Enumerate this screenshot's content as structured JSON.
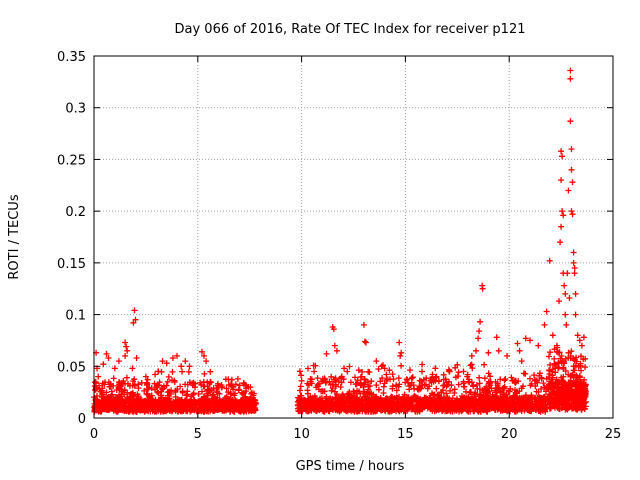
{
  "chart_data": {
    "type": "scatter",
    "title": "Day 066 of 2016, Rate Of TEC Index for receiver p121",
    "xlabel": "GPS time / hours",
    "ylabel": "ROTI / TECUs",
    "xlim": [
      0,
      25
    ],
    "ylim": [
      0,
      0.35
    ],
    "x_ticks": [
      0,
      5,
      10,
      15,
      20,
      25
    ],
    "x_tick_labels": [
      "0",
      "5",
      "10",
      "15",
      "20",
      "25"
    ],
    "y_ticks": [
      0,
      0.05,
      0.1,
      0.15,
      0.2,
      0.25,
      0.3,
      0.35
    ],
    "y_tick_labels": [
      "0",
      "0.05",
      "0.1",
      "0.15",
      "0.2",
      "0.25",
      "0.3",
      "0.35"
    ],
    "grid": true,
    "marker": "+",
    "series_color": "#ff0000",
    "seed": 66,
    "noise_segments": [
      {
        "x_start": 0.0,
        "x_end": 7.8,
        "count": 1300,
        "y_base": 0.006,
        "y_typical": 0.018,
        "y_tail": 0.035
      },
      {
        "x_start": 9.8,
        "x_end": 21.9,
        "count": 1800,
        "y_base": 0.006,
        "y_typical": 0.02,
        "y_tail": 0.04
      },
      {
        "x_start": 21.9,
        "x_end": 23.7,
        "count": 450,
        "y_base": 0.008,
        "y_typical": 0.035,
        "y_tail": 0.06
      }
    ],
    "points": [
      {
        "x": 0.1,
        "y": 0.063
      },
      {
        "x": 0.15,
        "y": 0.048
      },
      {
        "x": 0.2,
        "y": 0.04
      },
      {
        "x": 0.45,
        "y": 0.052
      },
      {
        "x": 0.6,
        "y": 0.062
      },
      {
        "x": 0.7,
        "y": 0.058
      },
      {
        "x": 1.0,
        "y": 0.048
      },
      {
        "x": 1.2,
        "y": 0.055
      },
      {
        "x": 1.5,
        "y": 0.06
      },
      {
        "x": 1.5,
        "y": 0.073
      },
      {
        "x": 1.55,
        "y": 0.069
      },
      {
        "x": 1.6,
        "y": 0.065
      },
      {
        "x": 1.85,
        "y": 0.048
      },
      {
        "x": 1.9,
        "y": 0.092
      },
      {
        "x": 1.95,
        "y": 0.104
      },
      {
        "x": 2.0,
        "y": 0.095
      },
      {
        "x": 2.05,
        "y": 0.058
      },
      {
        "x": 2.5,
        "y": 0.04
      },
      {
        "x": 3.1,
        "y": 0.045
      },
      {
        "x": 3.3,
        "y": 0.055
      },
      {
        "x": 3.5,
        "y": 0.053
      },
      {
        "x": 3.8,
        "y": 0.058
      },
      {
        "x": 4.0,
        "y": 0.06
      },
      {
        "x": 4.2,
        "y": 0.05
      },
      {
        "x": 4.4,
        "y": 0.055
      },
      {
        "x": 4.6,
        "y": 0.05
      },
      {
        "x": 5.2,
        "y": 0.064
      },
      {
        "x": 5.3,
        "y": 0.06
      },
      {
        "x": 5.4,
        "y": 0.055
      },
      {
        "x": 5.6,
        "y": 0.035
      },
      {
        "x": 6.0,
        "y": 0.03
      },
      {
        "x": 6.5,
        "y": 0.032
      },
      {
        "x": 7.3,
        "y": 0.032
      },
      {
        "x": 10.0,
        "y": 0.036
      },
      {
        "x": 10.6,
        "y": 0.045
      },
      {
        "x": 11.2,
        "y": 0.062
      },
      {
        "x": 11.5,
        "y": 0.088
      },
      {
        "x": 11.55,
        "y": 0.086
      },
      {
        "x": 11.6,
        "y": 0.07
      },
      {
        "x": 11.7,
        "y": 0.065
      },
      {
        "x": 12.2,
        "y": 0.045
      },
      {
        "x": 13.0,
        "y": 0.09
      },
      {
        "x": 13.05,
        "y": 0.074
      },
      {
        "x": 13.1,
        "y": 0.073
      },
      {
        "x": 13.6,
        "y": 0.055
      },
      {
        "x": 14.0,
        "y": 0.048
      },
      {
        "x": 14.7,
        "y": 0.073
      },
      {
        "x": 14.8,
        "y": 0.063
      },
      {
        "x": 14.75,
        "y": 0.06
      },
      {
        "x": 15.8,
        "y": 0.045
      },
      {
        "x": 16.5,
        "y": 0.04
      },
      {
        "x": 17.1,
        "y": 0.035
      },
      {
        "x": 17.8,
        "y": 0.045
      },
      {
        "x": 18.0,
        "y": 0.042
      },
      {
        "x": 18.2,
        "y": 0.06
      },
      {
        "x": 18.4,
        "y": 0.065
      },
      {
        "x": 18.5,
        "y": 0.077
      },
      {
        "x": 18.55,
        "y": 0.084
      },
      {
        "x": 18.6,
        "y": 0.093
      },
      {
        "x": 18.7,
        "y": 0.128
      },
      {
        "x": 18.72,
        "y": 0.125
      },
      {
        "x": 19.0,
        "y": 0.063
      },
      {
        "x": 19.4,
        "y": 0.078
      },
      {
        "x": 19.5,
        "y": 0.065
      },
      {
        "x": 19.9,
        "y": 0.06
      },
      {
        "x": 20.4,
        "y": 0.072
      },
      {
        "x": 20.5,
        "y": 0.065
      },
      {
        "x": 20.6,
        "y": 0.055
      },
      {
        "x": 20.8,
        "y": 0.077
      },
      {
        "x": 21.0,
        "y": 0.075
      },
      {
        "x": 21.4,
        "y": 0.07
      },
      {
        "x": 21.7,
        "y": 0.09
      },
      {
        "x": 21.8,
        "y": 0.103
      },
      {
        "x": 21.95,
        "y": 0.152
      },
      {
        "x": 22.1,
        "y": 0.08
      },
      {
        "x": 22.3,
        "y": 0.07
      },
      {
        "x": 22.4,
        "y": 0.113
      },
      {
        "x": 22.45,
        "y": 0.17
      },
      {
        "x": 22.5,
        "y": 0.185
      },
      {
        "x": 22.5,
        "y": 0.23
      },
      {
        "x": 22.5,
        "y": 0.258
      },
      {
        "x": 22.55,
        "y": 0.253
      },
      {
        "x": 22.55,
        "y": 0.2
      },
      {
        "x": 22.6,
        "y": 0.196
      },
      {
        "x": 22.6,
        "y": 0.14
      },
      {
        "x": 22.65,
        "y": 0.128
      },
      {
        "x": 22.7,
        "y": 0.12
      },
      {
        "x": 22.7,
        "y": 0.1
      },
      {
        "x": 22.75,
        "y": 0.09
      },
      {
        "x": 22.8,
        "y": 0.14
      },
      {
        "x": 22.85,
        "y": 0.22
      },
      {
        "x": 22.9,
        "y": 0.116
      },
      {
        "x": 22.95,
        "y": 0.336
      },
      {
        "x": 22.95,
        "y": 0.328
      },
      {
        "x": 22.95,
        "y": 0.287
      },
      {
        "x": 23.0,
        "y": 0.26
      },
      {
        "x": 23.0,
        "y": 0.24
      },
      {
        "x": 23.0,
        "y": 0.2
      },
      {
        "x": 23.05,
        "y": 0.228
      },
      {
        "x": 23.05,
        "y": 0.197
      },
      {
        "x": 23.1,
        "y": 0.16
      },
      {
        "x": 23.1,
        "y": 0.15
      },
      {
        "x": 23.15,
        "y": 0.145
      },
      {
        "x": 23.15,
        "y": 0.14
      },
      {
        "x": 23.2,
        "y": 0.12
      },
      {
        "x": 23.2,
        "y": 0.1
      },
      {
        "x": 23.3,
        "y": 0.08
      },
      {
        "x": 23.4,
        "y": 0.075
      },
      {
        "x": 23.5,
        "y": 0.07
      },
      {
        "x": 23.6,
        "y": 0.078
      }
    ]
  }
}
